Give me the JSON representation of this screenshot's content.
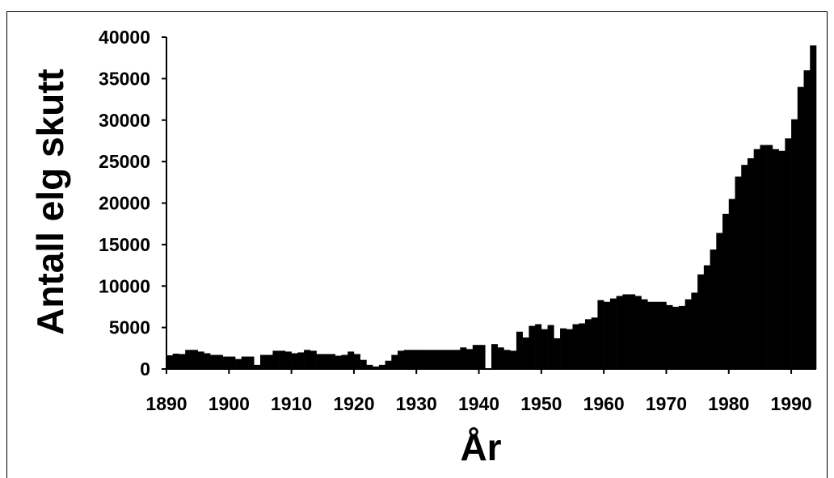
{
  "chart_data": {
    "type": "bar",
    "y_label": "Antall elg skutt",
    "x_label": "År",
    "color": "#000000",
    "x": [
      1890,
      1891,
      1892,
      1893,
      1894,
      1895,
      1896,
      1897,
      1898,
      1899,
      1900,
      1901,
      1902,
      1903,
      1904,
      1905,
      1906,
      1907,
      1908,
      1909,
      1910,
      1911,
      1912,
      1913,
      1914,
      1915,
      1916,
      1917,
      1918,
      1919,
      1920,
      1921,
      1922,
      1923,
      1924,
      1925,
      1926,
      1927,
      1928,
      1929,
      1930,
      1931,
      1932,
      1933,
      1934,
      1935,
      1936,
      1937,
      1938,
      1939,
      1940,
      1941,
      1942,
      1943,
      1944,
      1945,
      1946,
      1947,
      1948,
      1949,
      1950,
      1951,
      1952,
      1953,
      1954,
      1955,
      1956,
      1957,
      1958,
      1959,
      1960,
      1961,
      1962,
      1963,
      1964,
      1965,
      1966,
      1967,
      1968,
      1969,
      1970,
      1971,
      1972,
      1973,
      1974,
      1975,
      1976,
      1977,
      1978,
      1979,
      1980,
      1981,
      1982,
      1983,
      1984,
      1985,
      1986,
      1987,
      1988,
      1989,
      1990,
      1991,
      1992,
      1993
    ],
    "values": [
      1650,
      1850,
      1800,
      2300,
      2300,
      2100,
      1900,
      1700,
      1700,
      1500,
      1500,
      1200,
      1500,
      1500,
      500,
      1700,
      1700,
      2200,
      2200,
      2100,
      1900,
      2000,
      2300,
      2200,
      1800,
      1800,
      1800,
      1600,
      1700,
      2100,
      1800,
      1100,
      500,
      300,
      500,
      1000,
      1700,
      2200,
      2300,
      2300,
      2300,
      2300,
      2300,
      2300,
      2300,
      2300,
      2300,
      2600,
      2400,
      2900,
      2900,
      0,
      3000,
      2600,
      2300,
      2200,
      4500,
      3800,
      5200,
      5400,
      4800,
      5300,
      3700,
      4900,
      4800,
      5400,
      5500,
      6000,
      6200,
      8300,
      8100,
      8500,
      8800,
      9000,
      9000,
      8800,
      8400,
      8100,
      8100,
      8100,
      7700,
      7500,
      7600,
      8400,
      9200,
      11400,
      12500,
      14400,
      16400,
      18700,
      20500,
      23200,
      24600,
      25400,
      26500,
      27000,
      27000,
      26500,
      26300,
      27800,
      30100,
      34000,
      36000,
      39000
    ],
    "xlim": [
      1890,
      1994
    ],
    "xticks": [
      1890,
      1900,
      1910,
      1920,
      1930,
      1940,
      1950,
      1960,
      1970,
      1980,
      1990
    ],
    "ylim": [
      0,
      40000
    ],
    "yticks": [
      0,
      5000,
      10000,
      15000,
      20000,
      25000,
      30000,
      35000,
      40000
    ]
  }
}
